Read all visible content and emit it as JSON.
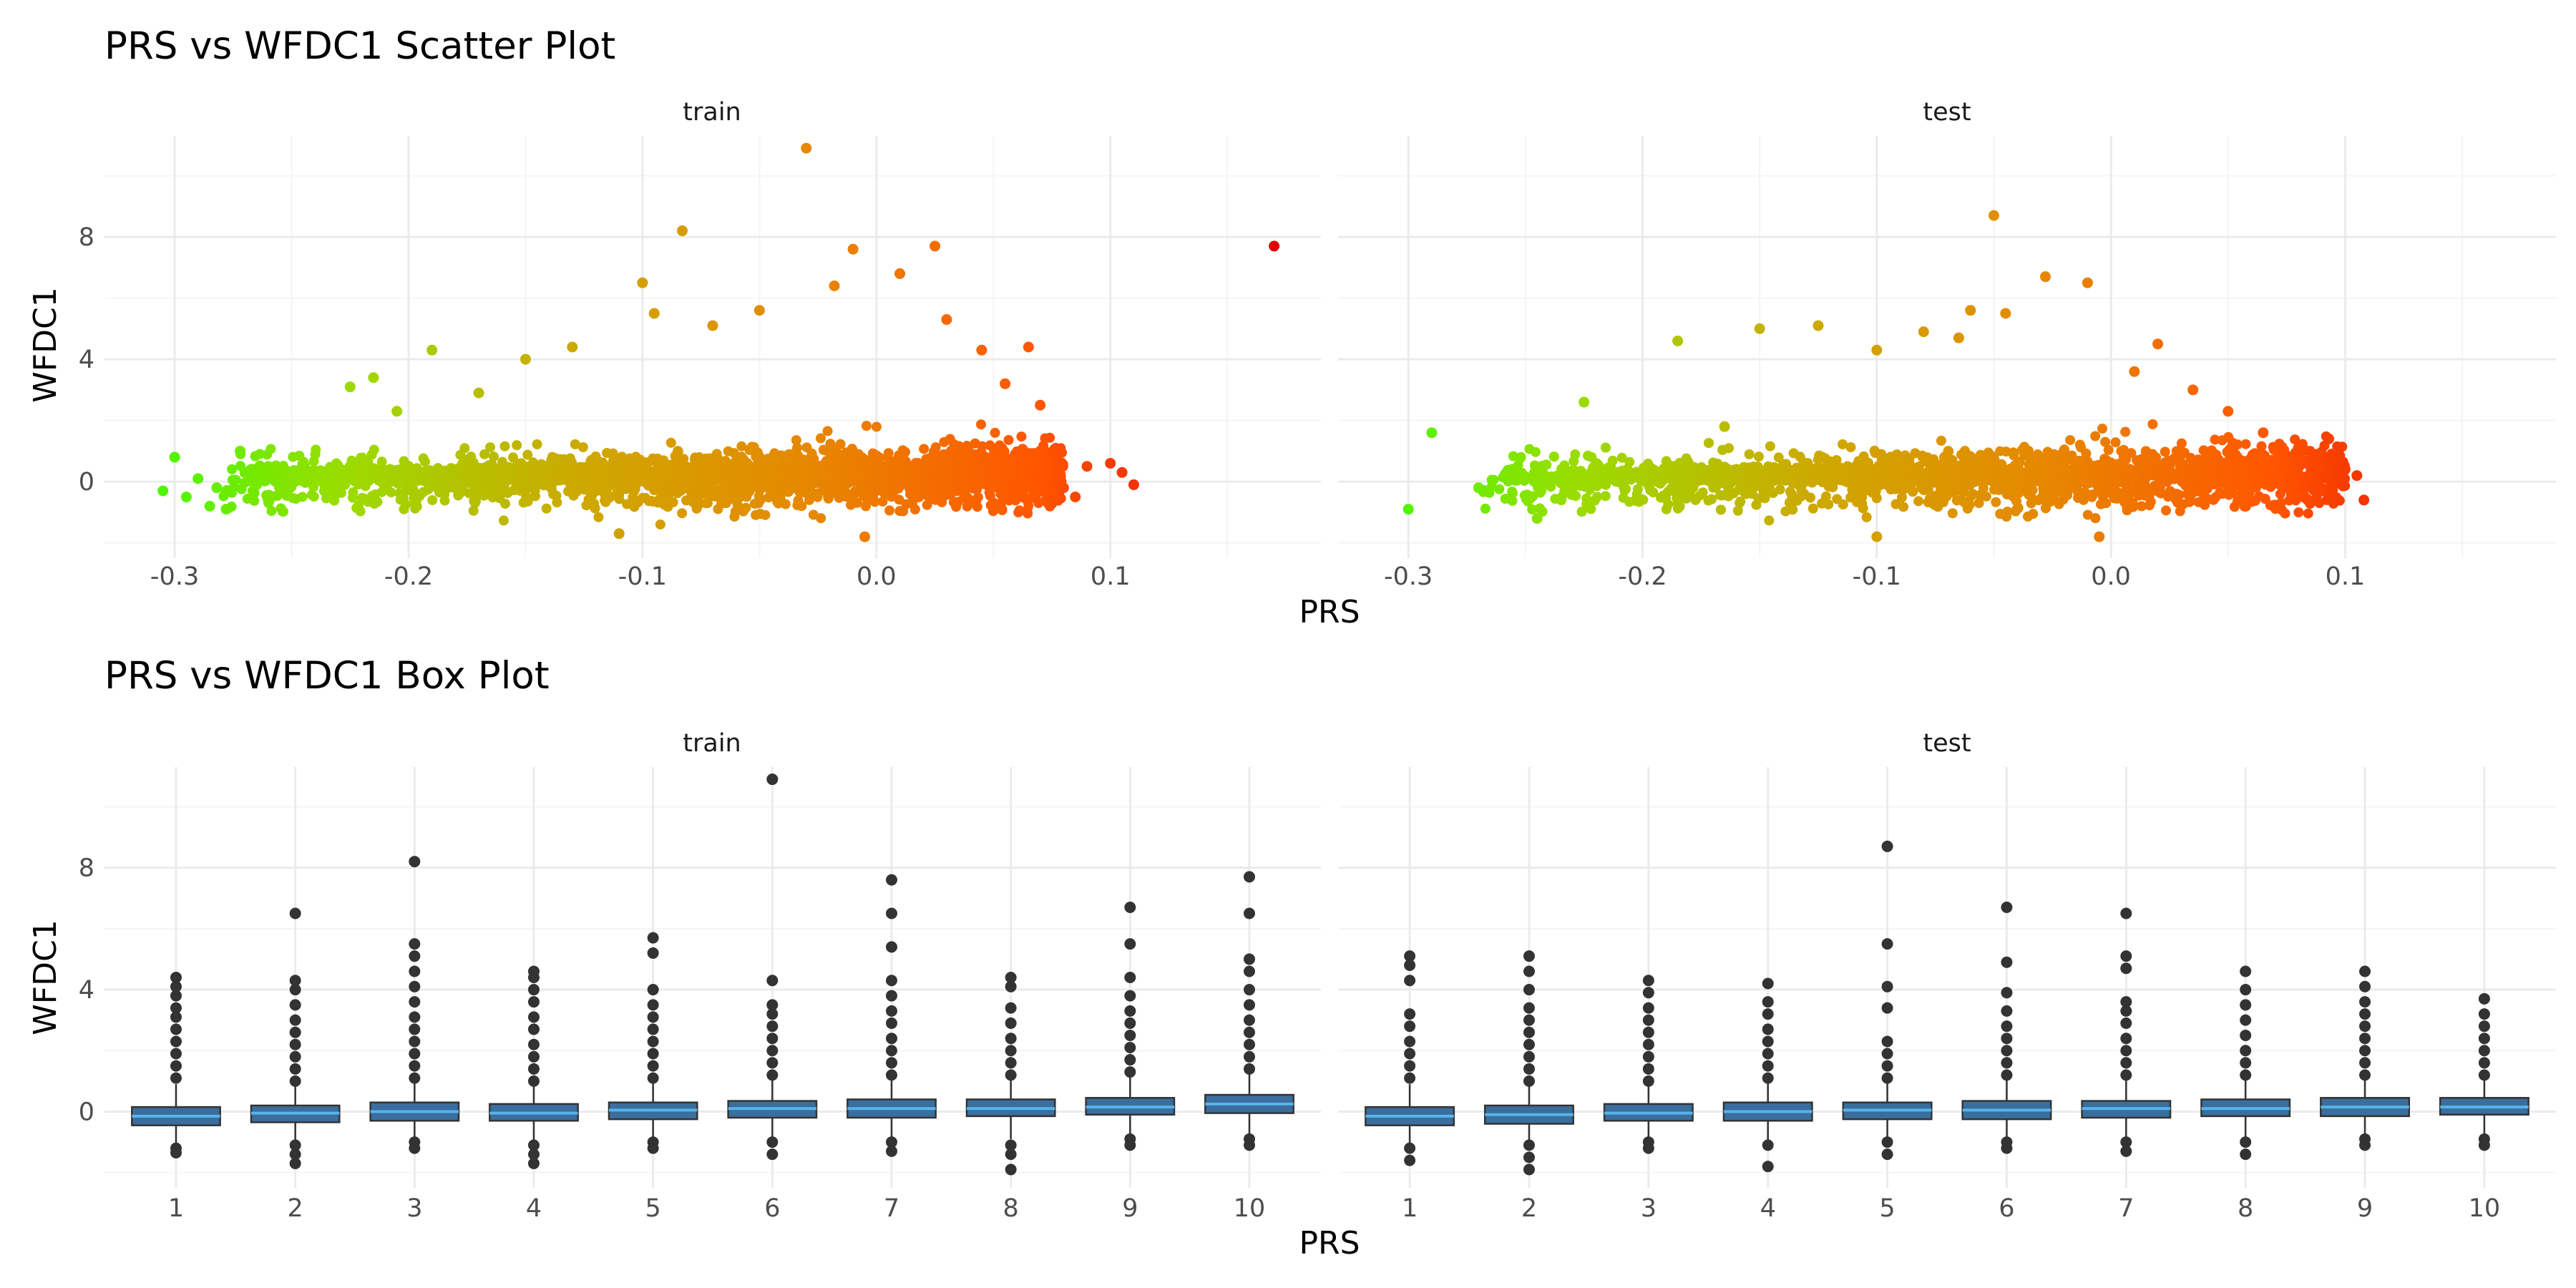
{
  "colors": {
    "grid_major": "#ebebeb",
    "grid_minor": "#f5f5f5",
    "point_dark": "#333333",
    "box_fill": "#3a6e9e",
    "box_median": "#56b4e9",
    "gradient": [
      "#33ff00",
      "#99dd00",
      "#ccaa00",
      "#e68800",
      "#ff5500",
      "#e00000"
    ]
  },
  "chart_data": [
    {
      "type": "scatter",
      "title": "PRS vs WFDC1 Scatter Plot",
      "xlabel": "PRS",
      "ylabel": "WFDC1",
      "xlim": [
        -0.33,
        0.19
      ],
      "ylim": [
        -2.5,
        11.3
      ],
      "x_ticks": [
        -0.3,
        -0.2,
        -0.1,
        0.0,
        0.1
      ],
      "x_tick_labels": [
        "-0.3",
        "-0.2",
        "-0.1",
        "0.0",
        "0.1"
      ],
      "y_ticks": [
        0,
        4,
        8
      ],
      "y_tick_labels": [
        "0",
        "4",
        "8"
      ],
      "grid": true,
      "color_by": "PRS",
      "facets": [
        {
          "label": "train",
          "note_bulk": "dense cloud of several thousand points spanning PRS -0.28 to 0.08, WFDC1 mostly between -1.5 and 3",
          "points": [
            [
              -0.305,
              -0.3
            ],
            [
              -0.3,
              0.8
            ],
            [
              -0.295,
              -0.5
            ],
            [
              -0.29,
              0.1
            ],
            [
              -0.285,
              -0.8
            ],
            [
              -0.282,
              -0.2
            ],
            [
              -0.278,
              -0.9
            ],
            [
              -0.272,
              1.0
            ],
            [
              -0.26,
              0.5
            ],
            [
              -0.245,
              0.6
            ],
            [
              -0.225,
              3.1
            ],
            [
              -0.215,
              3.4
            ],
            [
              -0.205,
              2.3
            ],
            [
              -0.19,
              4.3
            ],
            [
              -0.17,
              2.9
            ],
            [
              -0.15,
              4.0
            ],
            [
              -0.13,
              4.4
            ],
            [
              -0.1,
              6.5
            ],
            [
              -0.11,
              -1.7
            ],
            [
              -0.095,
              5.5
            ],
            [
              -0.083,
              8.2
            ],
            [
              -0.07,
              5.1
            ],
            [
              -0.05,
              5.6
            ],
            [
              -0.03,
              10.9
            ],
            [
              -0.018,
              6.4
            ],
            [
              -0.01,
              7.6
            ],
            [
              -0.005,
              -1.8
            ],
            [
              0.01,
              6.8
            ],
            [
              0.025,
              7.7
            ],
            [
              0.03,
              5.3
            ],
            [
              0.045,
              4.3
            ],
            [
              0.055,
              3.2
            ],
            [
              0.065,
              4.4
            ],
            [
              0.07,
              2.5
            ],
            [
              0.08,
              -0.2
            ],
            [
              0.085,
              -0.5
            ],
            [
              0.09,
              0.5
            ],
            [
              0.1,
              0.6
            ],
            [
              0.105,
              0.3
            ],
            [
              0.11,
              -0.1
            ],
            [
              0.17,
              7.7
            ]
          ]
        },
        {
          "label": "test",
          "note_bulk": "dense cloud of several thousand points spanning PRS -0.27 to 0.10, WFDC1 mostly between -1.5 and 3",
          "points": [
            [
              -0.3,
              -0.9
            ],
            [
              -0.29,
              1.6
            ],
            [
              -0.27,
              -0.2
            ],
            [
              -0.245,
              -1.2
            ],
            [
              -0.225,
              2.6
            ],
            [
              -0.185,
              4.6
            ],
            [
              -0.165,
              1.8
            ],
            [
              -0.15,
              5.0
            ],
            [
              -0.125,
              5.1
            ],
            [
              -0.1,
              4.3
            ],
            [
              -0.1,
              -1.8
            ],
            [
              -0.08,
              4.9
            ],
            [
              -0.065,
              4.7
            ],
            [
              -0.06,
              5.6
            ],
            [
              -0.05,
              8.7
            ],
            [
              -0.045,
              5.5
            ],
            [
              -0.028,
              6.7
            ],
            [
              -0.01,
              6.5
            ],
            [
              -0.005,
              -1.8
            ],
            [
              0.01,
              3.6
            ],
            [
              0.02,
              4.5
            ],
            [
              0.035,
              3.0
            ],
            [
              0.05,
              2.3
            ],
            [
              0.065,
              1.6
            ],
            [
              0.08,
              1.1
            ],
            [
              0.09,
              -0.3
            ],
            [
              0.093,
              1.4
            ],
            [
              0.1,
              0.4
            ],
            [
              0.105,
              0.2
            ],
            [
              0.108,
              -0.6
            ]
          ]
        }
      ]
    },
    {
      "type": "box",
      "title": "PRS vs WFDC1 Box Plot",
      "xlabel": "PRS",
      "ylabel": "WFDC1",
      "categories": [
        "1",
        "2",
        "3",
        "4",
        "5",
        "6",
        "7",
        "8",
        "9",
        "10"
      ],
      "ylim": [
        -2.5,
        11.3
      ],
      "y_ticks": [
        0,
        4,
        8
      ],
      "y_tick_labels": [
        "0",
        "4",
        "8"
      ],
      "grid": true,
      "facets": [
        {
          "label": "train",
          "boxes": [
            {
              "q1": -0.45,
              "median": -0.15,
              "q3": 0.15,
              "whisker_low": -1.1,
              "whisker_high": 0.9,
              "outliers_high": [
                1.1,
                1.5,
                1.9,
                2.3,
                2.7,
                3.1,
                3.4,
                3.8,
                4.1,
                4.4
              ],
              "outliers_low": [
                -1.2,
                -1.35
              ]
            },
            {
              "q1": -0.35,
              "median": -0.05,
              "q3": 0.2,
              "whisker_low": -1.0,
              "whisker_high": 0.9,
              "outliers_high": [
                1.0,
                1.4,
                1.8,
                2.2,
                2.6,
                3.0,
                3.5,
                4.0,
                4.3,
                6.5
              ],
              "outliers_low": [
                -1.1,
                -1.4,
                -1.7
              ]
            },
            {
              "q1": -0.3,
              "median": 0.0,
              "q3": 0.3,
              "whisker_low": -0.95,
              "whisker_high": 1.0,
              "outliers_high": [
                1.1,
                1.5,
                1.9,
                2.3,
                2.7,
                3.1,
                3.6,
                4.1,
                4.6,
                5.1,
                5.5,
                8.2
              ],
              "outliers_low": [
                -1.0,
                -1.2
              ]
            },
            {
              "q1": -0.3,
              "median": -0.05,
              "q3": 0.25,
              "whisker_low": -0.95,
              "whisker_high": 0.95,
              "outliers_high": [
                1.0,
                1.4,
                1.8,
                2.2,
                2.7,
                3.1,
                3.6,
                4.0,
                4.4,
                4.6
              ],
              "outliers_low": [
                -1.1,
                -1.4,
                -1.7
              ]
            },
            {
              "q1": -0.25,
              "median": 0.05,
              "q3": 0.3,
              "whisker_low": -0.9,
              "whisker_high": 1.0,
              "outliers_high": [
                1.1,
                1.5,
                1.9,
                2.3,
                2.7,
                3.1,
                3.5,
                4.0,
                5.2,
                5.7
              ],
              "outliers_low": [
                -1.0,
                -1.2
              ]
            },
            {
              "q1": -0.2,
              "median": 0.1,
              "q3": 0.35,
              "whisker_low": -0.95,
              "whisker_high": 1.1,
              "outliers_high": [
                1.2,
                1.6,
                2.0,
                2.4,
                2.8,
                3.2,
                3.5,
                4.3,
                10.9
              ],
              "outliers_low": [
                -1.0,
                -1.4
              ]
            },
            {
              "q1": -0.2,
              "median": 0.1,
              "q3": 0.4,
              "whisker_low": -0.95,
              "whisker_high": 1.1,
              "outliers_high": [
                1.2,
                1.6,
                2.0,
                2.4,
                2.9,
                3.3,
                3.8,
                4.3,
                5.4,
                6.5,
                7.6
              ],
              "outliers_low": [
                -1.0,
                -1.3
              ]
            },
            {
              "q1": -0.15,
              "median": 0.1,
              "q3": 0.4,
              "whisker_low": -0.9,
              "whisker_high": 1.1,
              "outliers_high": [
                1.2,
                1.6,
                2.0,
                2.4,
                2.9,
                3.4,
                4.1,
                4.4
              ],
              "outliers_low": [
                -1.1,
                -1.4,
                -1.9
              ]
            },
            {
              "q1": -0.1,
              "median": 0.15,
              "q3": 0.45,
              "whisker_low": -0.85,
              "whisker_high": 1.2,
              "outliers_high": [
                1.3,
                1.7,
                2.1,
                2.5,
                2.9,
                3.3,
                3.8,
                4.4,
                5.5,
                6.7
              ],
              "outliers_low": [
                -0.9,
                -1.1
              ]
            },
            {
              "q1": -0.05,
              "median": 0.25,
              "q3": 0.55,
              "whisker_low": -0.85,
              "whisker_high": 1.3,
              "outliers_high": [
                1.4,
                1.8,
                2.2,
                2.6,
                3.0,
                3.5,
                4.0,
                4.6,
                5.0,
                6.5,
                7.7
              ],
              "outliers_low": [
                -0.9,
                -1.1
              ]
            }
          ]
        },
        {
          "label": "test",
          "boxes": [
            {
              "q1": -0.45,
              "median": -0.15,
              "q3": 0.15,
              "whisker_low": -1.1,
              "whisker_high": 0.9,
              "outliers_high": [
                1.1,
                1.5,
                1.9,
                2.3,
                2.8,
                3.2,
                4.3,
                4.8,
                5.1
              ],
              "outliers_low": [
                -1.2,
                -1.6
              ]
            },
            {
              "q1": -0.4,
              "median": -0.1,
              "q3": 0.2,
              "whisker_low": -1.0,
              "whisker_high": 0.9,
              "outliers_high": [
                1.0,
                1.4,
                1.8,
                2.2,
                2.6,
                3.0,
                3.4,
                4.0,
                4.6,
                5.1
              ],
              "outliers_low": [
                -1.1,
                -1.5,
                -1.9
              ]
            },
            {
              "q1": -0.3,
              "median": -0.05,
              "q3": 0.25,
              "whisker_low": -0.95,
              "whisker_high": 0.95,
              "outliers_high": [
                1.0,
                1.4,
                1.8,
                2.2,
                2.6,
                3.0,
                3.4,
                3.9,
                4.3
              ],
              "outliers_low": [
                -1.0,
                -1.2
              ]
            },
            {
              "q1": -0.3,
              "median": 0.0,
              "q3": 0.3,
              "whisker_low": -0.95,
              "whisker_high": 1.0,
              "outliers_high": [
                1.1,
                1.5,
                1.9,
                2.3,
                2.7,
                3.2,
                3.6,
                4.2
              ],
              "outliers_low": [
                -1.1,
                -1.8
              ]
            },
            {
              "q1": -0.25,
              "median": 0.05,
              "q3": 0.3,
              "whisker_low": -0.9,
              "whisker_high": 1.0,
              "outliers_high": [
                1.1,
                1.5,
                1.9,
                2.3,
                3.4,
                4.1,
                5.5,
                8.7
              ],
              "outliers_low": [
                -1.0,
                -1.4
              ]
            },
            {
              "q1": -0.25,
              "median": 0.05,
              "q3": 0.35,
              "whisker_low": -0.9,
              "whisker_high": 1.05,
              "outliers_high": [
                1.2,
                1.6,
                2.0,
                2.4,
                2.8,
                3.3,
                3.9,
                4.9,
                6.7
              ],
              "outliers_low": [
                -1.0,
                -1.2
              ]
            },
            {
              "q1": -0.2,
              "median": 0.1,
              "q3": 0.35,
              "whisker_low": -0.9,
              "whisker_high": 1.05,
              "outliers_high": [
                1.2,
                1.6,
                2.0,
                2.4,
                2.9,
                3.3,
                3.6,
                4.7,
                5.1,
                6.5
              ],
              "outliers_low": [
                -1.0,
                -1.3
              ]
            },
            {
              "q1": -0.15,
              "median": 0.1,
              "q3": 0.4,
              "whisker_low": -0.85,
              "whisker_high": 1.1,
              "outliers_high": [
                1.2,
                1.6,
                2.0,
                2.5,
                3.0,
                3.5,
                4.0,
                4.6
              ],
              "outliers_low": [
                -1.0,
                -1.4
              ]
            },
            {
              "q1": -0.15,
              "median": 0.15,
              "q3": 0.45,
              "whisker_low": -0.85,
              "whisker_high": 1.1,
              "outliers_high": [
                1.2,
                1.6,
                2.0,
                2.4,
                2.8,
                3.2,
                3.6,
                4.1,
                4.6
              ],
              "outliers_low": [
                -0.9,
                -1.1
              ]
            },
            {
              "q1": -0.1,
              "median": 0.15,
              "q3": 0.45,
              "whisker_low": -0.85,
              "whisker_high": 1.15,
              "outliers_high": [
                1.2,
                1.6,
                2.0,
                2.4,
                2.8,
                3.2,
                3.7
              ],
              "outliers_low": [
                -0.9,
                -1.1
              ]
            }
          ]
        }
      ]
    }
  ]
}
